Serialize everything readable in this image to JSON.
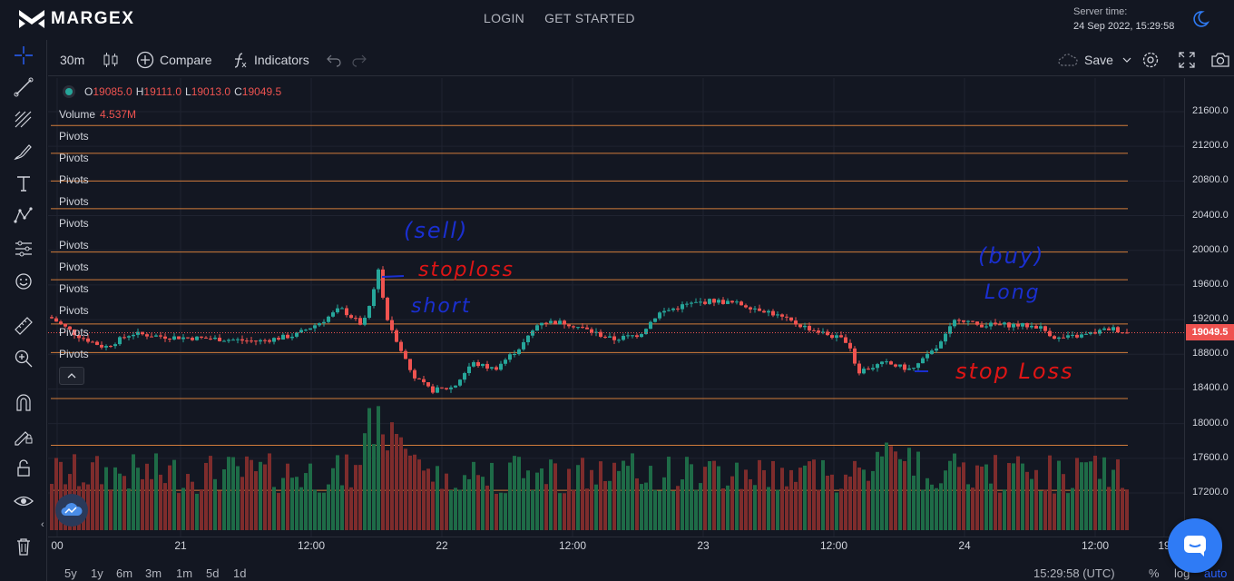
{
  "header": {
    "logo_text": "MARGEX",
    "nav": [
      {
        "label": "LOGIN"
      },
      {
        "label": "GET STARTED"
      }
    ],
    "server_time_label": "Server time:",
    "server_time_value": "24 Sep 2022, 15:29:58",
    "theme_icon": "moon-icon"
  },
  "left_toolbar": {
    "tools": [
      {
        "icon": "crosshair-icon"
      },
      {
        "icon": "trend-line-icon"
      },
      {
        "icon": "fib-retracement-icon"
      },
      {
        "icon": "brush-icon"
      },
      {
        "icon": "text-icon"
      },
      {
        "icon": "pattern-icon"
      },
      {
        "icon": "prediction-icon"
      },
      {
        "icon": "emoji-icon"
      },
      {
        "icon": "ruler-icon"
      },
      {
        "icon": "zoom-in-icon"
      },
      {
        "icon": "magnet-icon"
      },
      {
        "icon": "lock-drawing-icon"
      },
      {
        "icon": "lock-icon"
      },
      {
        "icon": "eye-icon"
      },
      {
        "icon": "trash-icon"
      }
    ]
  },
  "chart_toolbar": {
    "interval": "30m",
    "compare_label": "Compare",
    "indicators_label": "Indicators",
    "save_label": "Save"
  },
  "legend": {
    "o_key": "O",
    "o_val": "19085.0",
    "h_key": "H",
    "h_val": "19111.0",
    "l_key": "L",
    "l_val": "19013.0",
    "c_key": "C",
    "c_val": "19049.5",
    "volume_label": "Volume",
    "volume_value": "4.537M",
    "pivots_label": "Pivots",
    "pivots_count": 11
  },
  "chart_data": {
    "type": "candlestick",
    "interval": "30m",
    "price_axis_ticks": [
      "21600.0",
      "21200.0",
      "20800.0",
      "20400.0",
      "20000.0",
      "19600.0",
      "19200.0",
      "18800.0",
      "18400.0",
      "18000.0",
      "17600.0",
      "17200.0"
    ],
    "last_price": "19049.5",
    "time_axis_ticks": [
      "00",
      "21",
      "12:00",
      "22",
      "12:00",
      "23",
      "12:00",
      "24",
      "12:00",
      "19"
    ],
    "pivot_levels": [
      21440,
      21120,
      20800,
      20480,
      19980,
      19660,
      19150,
      18820,
      18290,
      17750,
      17230
    ],
    "annotations": [
      {
        "text": "(sell)",
        "color": "#1a2fd0"
      },
      {
        "text": "stoploss",
        "color": "#e01515"
      },
      {
        "text": "short",
        "color": "#1a2fd0"
      },
      {
        "text": "(buy)",
        "color": "#1a2fd0"
      },
      {
        "text": "Long",
        "color": "#1a2fd0"
      },
      {
        "text": "stop Loss",
        "color": "#e01515"
      }
    ],
    "colors": {
      "up": "#26a69a",
      "down": "#ef5350",
      "pivot": "#d27d3b",
      "vol_up": "#1e6b47",
      "vol_down": "#7e2c2c",
      "sell_annot": "#1a2fd0",
      "stop_annot": "#e01515"
    }
  },
  "bottom_bar": {
    "ranges": [
      "5y",
      "1y",
      "6m",
      "3m",
      "1m",
      "5d",
      "1d"
    ],
    "time": "15:29:58 (UTC)",
    "percent": "%",
    "log": "log",
    "auto": "auto"
  }
}
